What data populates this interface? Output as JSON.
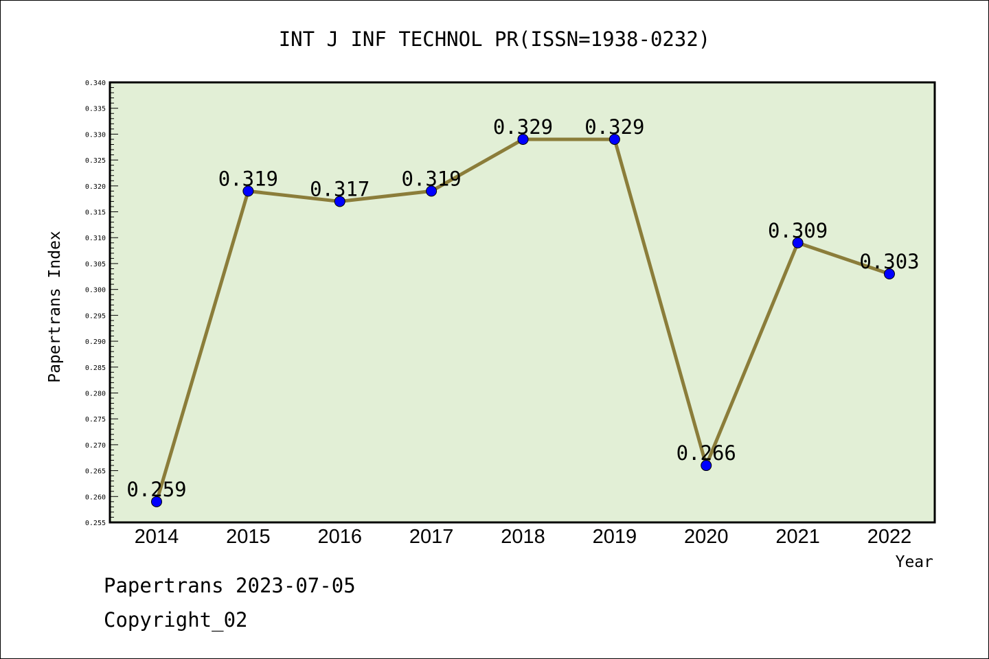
{
  "chart_data": {
    "type": "line",
    "title": "INT J INF TECHNOL PR(ISSN=1938-0232)",
    "xlabel": "Year",
    "ylabel": "Papertrans Index",
    "categories": [
      "2014",
      "2015",
      "2016",
      "2017",
      "2018",
      "2019",
      "2020",
      "2021",
      "2022"
    ],
    "series": [
      {
        "values": [
          0.259,
          0.319,
          0.317,
          0.319,
          0.329,
          0.329,
          0.266,
          0.309,
          0.303
        ],
        "data_labels": [
          "0.259",
          "0.319",
          "0.317",
          "0.319",
          "0.329",
          "0.329",
          "0.266",
          "0.309",
          "0.303"
        ]
      }
    ],
    "ylim": [
      0.255,
      0.34
    ],
    "yticks": [
      "0.255",
      "0.260",
      "0.265",
      "0.270",
      "0.275",
      "0.280",
      "0.285",
      "0.290",
      "0.295",
      "0.300",
      "0.305",
      "0.310",
      "0.315",
      "0.320",
      "0.325",
      "0.330",
      "0.335",
      "0.340"
    ],
    "grid": false,
    "legend": "none",
    "colors": {
      "plot_background": "#e2efd6",
      "line": "#8b7d3a",
      "marker": "#0000ff",
      "axis": "#000000"
    }
  },
  "footer": {
    "line1": "Papertrans 2023-07-05",
    "line2": "Copyright_02"
  }
}
